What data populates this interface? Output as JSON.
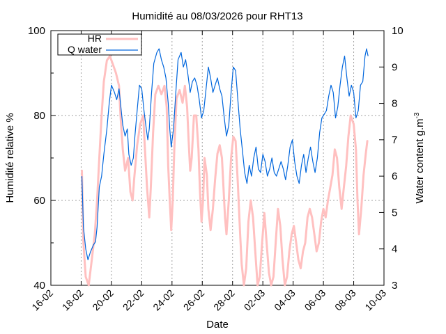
{
  "chart_data": {
    "type": "line",
    "title": "Humidité au 08/03/2026 pour RHT13",
    "xlabel": "Date",
    "ylabel": "Humidité relative %",
    "y2label_base": "Water content g.m",
    "y2label_sup": "-3",
    "x_ticks": [
      "16-02",
      "18-02",
      "20-02",
      "22-02",
      "24-02",
      "26-02",
      "28-02",
      "02-03",
      "04-03",
      "06-03",
      "08-03",
      "10-03"
    ],
    "xlim_days": [
      0,
      22
    ],
    "ylim": [
      40,
      100
    ],
    "y_ticks": [
      "40",
      "60",
      "80",
      "100"
    ],
    "y2lim": [
      3,
      10
    ],
    "y2_ticks": [
      "3",
      "4",
      "5",
      "6",
      "7",
      "8",
      "9",
      "10"
    ],
    "grid": true,
    "legend_position": "top-left",
    "series": [
      {
        "name": "HR",
        "axis": "left",
        "color": "#ffc0c0",
        "points": [
          [
            2.05,
            67
          ],
          [
            2.15,
            50
          ],
          [
            2.3,
            42
          ],
          [
            2.5,
            40
          ],
          [
            2.7,
            46
          ],
          [
            2.9,
            52
          ],
          [
            3.05,
            60
          ],
          [
            3.2,
            70
          ],
          [
            3.35,
            80
          ],
          [
            3.5,
            88
          ],
          [
            3.7,
            93
          ],
          [
            3.9,
            94
          ],
          [
            4.1,
            92
          ],
          [
            4.3,
            90
          ],
          [
            4.5,
            87
          ],
          [
            4.6,
            80
          ],
          [
            4.75,
            72
          ],
          [
            4.9,
            67
          ],
          [
            5.1,
            70
          ],
          [
            5.25,
            62
          ],
          [
            5.4,
            60
          ],
          [
            5.5,
            65
          ],
          [
            5.7,
            73
          ],
          [
            5.9,
            78
          ],
          [
            6.1,
            80
          ],
          [
            6.2,
            73
          ],
          [
            6.35,
            63
          ],
          [
            6.5,
            56
          ],
          [
            6.6,
            63
          ],
          [
            6.75,
            76
          ],
          [
            6.9,
            85
          ],
          [
            7.1,
            87
          ],
          [
            7.3,
            85
          ],
          [
            7.5,
            87
          ],
          [
            7.65,
            82
          ],
          [
            7.75,
            68
          ],
          [
            7.85,
            60
          ],
          [
            7.95,
            53
          ],
          [
            8.05,
            60
          ],
          [
            8.15,
            72
          ],
          [
            8.3,
            84
          ],
          [
            8.5,
            86
          ],
          [
            8.7,
            83
          ],
          [
            8.85,
            87
          ],
          [
            9.0,
            82
          ],
          [
            9.1,
            74
          ],
          [
            9.2,
            67
          ],
          [
            9.3,
            70
          ],
          [
            9.45,
            80
          ],
          [
            9.6,
            80
          ],
          [
            9.75,
            72
          ],
          [
            9.85,
            62
          ],
          [
            9.95,
            55
          ],
          [
            10.05,
            60
          ],
          [
            10.15,
            70
          ],
          [
            10.3,
            66
          ],
          [
            10.4,
            58
          ],
          [
            10.55,
            53
          ],
          [
            10.7,
            58
          ],
          [
            10.85,
            65
          ],
          [
            11.0,
            71
          ],
          [
            11.15,
            73
          ],
          [
            11.3,
            70
          ],
          [
            11.4,
            63
          ],
          [
            11.5,
            56
          ],
          [
            11.6,
            52
          ],
          [
            11.75,
            60
          ],
          [
            11.9,
            70
          ],
          [
            12.05,
            75
          ],
          [
            12.2,
            74
          ],
          [
            12.35,
            64
          ],
          [
            12.5,
            52
          ],
          [
            12.6,
            45
          ],
          [
            12.75,
            40
          ],
          [
            12.9,
            44
          ],
          [
            13.05,
            55
          ],
          [
            13.2,
            60
          ],
          [
            13.35,
            56
          ],
          [
            13.5,
            48
          ],
          [
            13.65,
            40
          ],
          [
            13.8,
            42
          ],
          [
            13.95,
            50
          ],
          [
            14.1,
            57
          ],
          [
            14.25,
            50
          ],
          [
            14.4,
            43
          ],
          [
            14.55,
            40
          ],
          [
            14.7,
            42
          ],
          [
            14.85,
            50
          ],
          [
            15.0,
            58
          ],
          [
            15.15,
            54
          ],
          [
            15.3,
            46
          ],
          [
            15.45,
            40
          ],
          [
            15.6,
            42
          ],
          [
            15.75,
            48
          ],
          [
            15.9,
            52
          ],
          [
            16.05,
            54
          ],
          [
            16.2,
            50
          ],
          [
            16.35,
            46
          ],
          [
            16.5,
            44
          ],
          [
            16.65,
            48
          ],
          [
            16.8,
            50
          ],
          [
            16.95,
            56
          ],
          [
            17.1,
            58
          ],
          [
            17.25,
            56
          ],
          [
            17.4,
            52
          ],
          [
            17.55,
            48
          ],
          [
            17.7,
            50
          ],
          [
            17.85,
            55
          ],
          [
            18.0,
            58
          ],
          [
            18.15,
            56
          ],
          [
            18.3,
            60
          ],
          [
            18.45,
            63
          ],
          [
            18.6,
            66
          ],
          [
            18.75,
            72
          ],
          [
            18.9,
            70
          ],
          [
            19.05,
            63
          ],
          [
            19.2,
            58
          ],
          [
            19.35,
            63
          ],
          [
            19.5,
            68
          ],
          [
            19.65,
            75
          ],
          [
            19.8,
            80
          ],
          [
            20.0,
            78
          ],
          [
            20.15,
            72
          ],
          [
            20.25,
            60
          ],
          [
            20.35,
            52
          ],
          [
            20.5,
            58
          ],
          [
            20.65,
            66
          ],
          [
            20.8,
            71
          ],
          [
            20.9,
            74
          ]
        ]
      },
      {
        "name": "Q water",
        "axis": "right",
        "color": "#0066dd",
        "points": [
          [
            2.05,
            6.0
          ],
          [
            2.15,
            4.6
          ],
          [
            2.3,
            4.0
          ],
          [
            2.45,
            3.7
          ],
          [
            2.6,
            3.9
          ],
          [
            2.8,
            4.1
          ],
          [
            2.95,
            4.2
          ],
          [
            3.05,
            4.6
          ],
          [
            3.2,
            5.7
          ],
          [
            3.35,
            6.0
          ],
          [
            3.5,
            6.6
          ],
          [
            3.7,
            7.3
          ],
          [
            3.85,
            8.0
          ],
          [
            4.0,
            8.5
          ],
          [
            4.2,
            8.3
          ],
          [
            4.35,
            8.1
          ],
          [
            4.5,
            8.4
          ],
          [
            4.6,
            8.0
          ],
          [
            4.75,
            7.4
          ],
          [
            4.9,
            7.1
          ],
          [
            5.05,
            7.3
          ],
          [
            5.15,
            6.6
          ],
          [
            5.3,
            6.3
          ],
          [
            5.45,
            6.5
          ],
          [
            5.55,
            7.1
          ],
          [
            5.7,
            7.8
          ],
          [
            5.85,
            8.5
          ],
          [
            6.0,
            8.4
          ],
          [
            6.15,
            7.8
          ],
          [
            6.3,
            7.3
          ],
          [
            6.4,
            7.0
          ],
          [
            6.5,
            7.3
          ],
          [
            6.65,
            8.3
          ],
          [
            6.8,
            9.1
          ],
          [
            7.0,
            9.4
          ],
          [
            7.15,
            9.5
          ],
          [
            7.3,
            9.2
          ],
          [
            7.45,
            9.0
          ],
          [
            7.6,
            8.7
          ],
          [
            7.75,
            8.0
          ],
          [
            7.85,
            7.3
          ],
          [
            7.95,
            6.8
          ],
          [
            8.1,
            7.3
          ],
          [
            8.25,
            8.3
          ],
          [
            8.4,
            9.2
          ],
          [
            8.6,
            9.4
          ],
          [
            8.75,
            9.0
          ],
          [
            8.9,
            9.2
          ],
          [
            9.05,
            8.8
          ],
          [
            9.2,
            8.3
          ],
          [
            9.35,
            8.6
          ],
          [
            9.5,
            8.7
          ],
          [
            9.65,
            8.5
          ],
          [
            9.8,
            8.1
          ],
          [
            9.95,
            7.6
          ],
          [
            10.1,
            7.8
          ],
          [
            10.25,
            8.4
          ],
          [
            10.4,
            9.0
          ],
          [
            10.55,
            8.7
          ],
          [
            10.7,
            8.3
          ],
          [
            10.85,
            8.5
          ],
          [
            11.0,
            8.7
          ],
          [
            11.15,
            8.4
          ],
          [
            11.3,
            8.2
          ],
          [
            11.45,
            7.6
          ],
          [
            11.6,
            7.1
          ],
          [
            11.75,
            7.4
          ],
          [
            11.9,
            8.3
          ],
          [
            12.05,
            9.0
          ],
          [
            12.2,
            8.9
          ],
          [
            12.35,
            8.1
          ],
          [
            12.5,
            7.3
          ],
          [
            12.65,
            6.7
          ],
          [
            12.8,
            6.1
          ],
          [
            12.95,
            5.8
          ],
          [
            13.1,
            6.3
          ],
          [
            13.25,
            6.0
          ],
          [
            13.4,
            6.5
          ],
          [
            13.55,
            6.8
          ],
          [
            13.7,
            6.2
          ],
          [
            13.85,
            6.1
          ],
          [
            14.0,
            6.6
          ],
          [
            14.15,
            6.4
          ],
          [
            14.3,
            6.0
          ],
          [
            14.45,
            6.2
          ],
          [
            14.6,
            6.5
          ],
          [
            14.75,
            6.1
          ],
          [
            14.9,
            6.0
          ],
          [
            15.05,
            6.2
          ],
          [
            15.2,
            6.4
          ],
          [
            15.35,
            6.2
          ],
          [
            15.5,
            5.9
          ],
          [
            15.65,
            6.3
          ],
          [
            15.8,
            6.8
          ],
          [
            15.95,
            7.0
          ],
          [
            16.1,
            6.4
          ],
          [
            16.25,
            6.0
          ],
          [
            16.4,
            5.8
          ],
          [
            16.55,
            6.3
          ],
          [
            16.7,
            6.6
          ],
          [
            16.85,
            6.1
          ],
          [
            17.0,
            6.5
          ],
          [
            17.15,
            6.8
          ],
          [
            17.3,
            6.4
          ],
          [
            17.45,
            6.1
          ],
          [
            17.6,
            6.5
          ],
          [
            17.75,
            7.2
          ],
          [
            17.9,
            7.6
          ],
          [
            18.05,
            7.7
          ],
          [
            18.2,
            7.8
          ],
          [
            18.35,
            8.2
          ],
          [
            18.5,
            8.5
          ],
          [
            18.65,
            8.3
          ],
          [
            18.8,
            7.6
          ],
          [
            18.95,
            7.9
          ],
          [
            19.1,
            8.5
          ],
          [
            19.25,
            9.0
          ],
          [
            19.4,
            9.3
          ],
          [
            19.55,
            8.7
          ],
          [
            19.7,
            8.2
          ],
          [
            19.85,
            8.5
          ],
          [
            20.0,
            8.3
          ],
          [
            20.15,
            7.6
          ],
          [
            20.3,
            7.8
          ],
          [
            20.45,
            8.5
          ],
          [
            20.6,
            8.6
          ],
          [
            20.75,
            9.3
          ],
          [
            20.85,
            9.5
          ],
          [
            20.95,
            9.3
          ]
        ]
      }
    ]
  }
}
